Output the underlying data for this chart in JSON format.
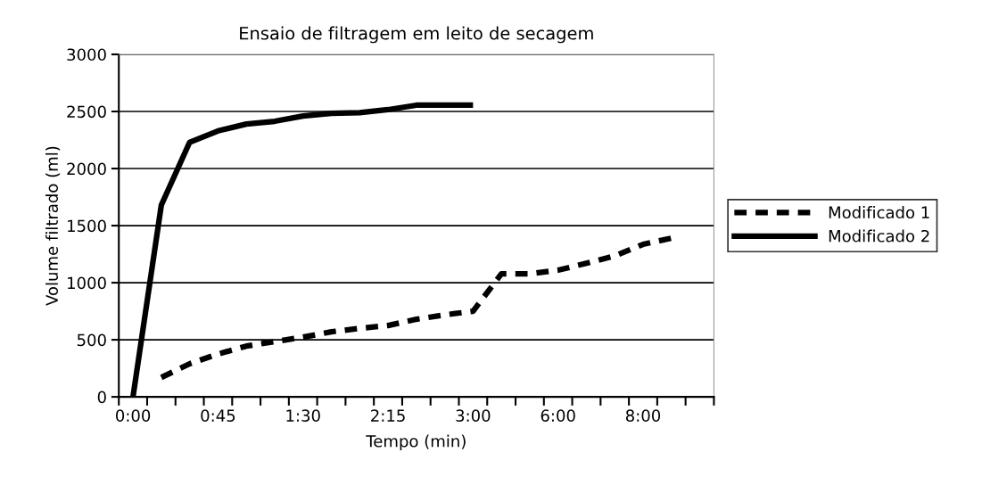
{
  "chart_data": {
    "type": "line",
    "title": "Ensaio de filtragem em leito de secagem",
    "xlabel": "Tempo (min)",
    "ylabel": "Volume filtrado (ml)",
    "categories": [
      "0:00",
      null,
      null,
      "0:45",
      null,
      null,
      "1:30",
      null,
      null,
      "2:15",
      null,
      null,
      "3:00",
      null,
      null,
      "6:00",
      null,
      null,
      "8:00",
      null,
      null
    ],
    "series": [
      {
        "name": "Modificado 1",
        "color": "#000000",
        "line_style": "dashed",
        "values": [
          null,
          170,
          290,
          375,
          445,
          484,
          523,
          570,
          600,
          625,
          680,
          718,
          750,
          1078,
          1078,
          1110,
          1170,
          1234,
          1336,
          1390,
          null
        ]
      },
      {
        "name": "Modificado 2",
        "color": "#000000",
        "line_style": "solid",
        "values": [
          0,
          1680,
          2230,
          2330,
          2390,
          2414,
          2460,
          2484,
          2490,
          2516,
          2555,
          2555,
          2555,
          null,
          null,
          null,
          null,
          null,
          null,
          null,
          null
        ]
      }
    ],
    "ylim": [
      0,
      3000
    ],
    "yticks": [
      0,
      500,
      1000,
      1500,
      2000,
      2500,
      3000
    ],
    "grid": "y",
    "legend": "right",
    "marker": "none"
  }
}
